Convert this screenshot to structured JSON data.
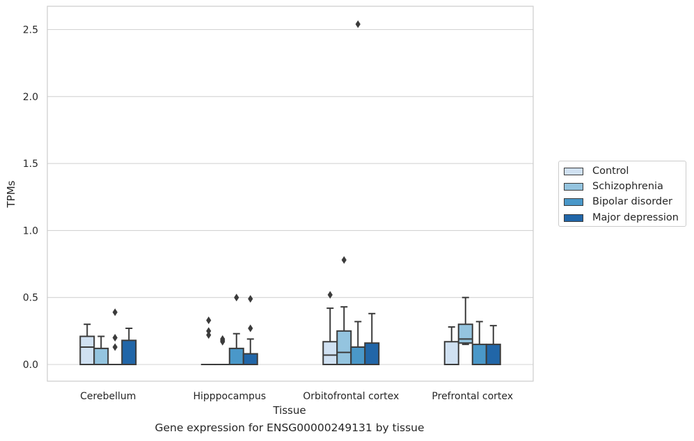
{
  "caption": "Gene expression for ENSG00000249131 by tissue",
  "legend": {
    "items": [
      {
        "label": "Control",
        "color": "#d0e1f2"
      },
      {
        "label": "Schizophrenia",
        "color": "#94c4df"
      },
      {
        "label": "Bipolar disorder",
        "color": "#4a98c9"
      },
      {
        "label": "Major depression",
        "color": "#2166a8"
      }
    ]
  },
  "chart_data": {
    "type": "box",
    "xlabel": "Tissue",
    "ylabel": "TPMs",
    "categories": [
      "Cerebellum",
      "Hipppocampus",
      "Orbitofrontal cortex",
      "Prefrontal cortex"
    ],
    "ylim": [
      -0.125,
      2.67
    ],
    "yticks": [
      0.0,
      0.5,
      1.0,
      1.5,
      2.0,
      2.5
    ],
    "ytick_labels": [
      "0.0",
      "0.5",
      "1.0",
      "1.5",
      "2.0",
      "2.5"
    ],
    "grid": true,
    "legend_position": "outside right",
    "series": [
      {
        "name": "Control",
        "color": "#d0e1f2",
        "boxes": [
          {
            "min": 0.0,
            "q1": 0.0,
            "median": 0.13,
            "q3": 0.21,
            "max": 0.3,
            "outliers": []
          },
          {
            "min": 0.0,
            "q1": 0.0,
            "median": 0.0,
            "q3": 0.0,
            "max": 0.0,
            "outliers": [
              0.22,
              0.25,
              0.33
            ]
          },
          {
            "min": 0.0,
            "q1": 0.0,
            "median": 0.07,
            "q3": 0.17,
            "max": 0.42,
            "outliers": [
              0.52
            ]
          },
          {
            "min": 0.0,
            "q1": 0.0,
            "median": 0.0,
            "q3": 0.17,
            "max": 0.28,
            "outliers": []
          }
        ]
      },
      {
        "name": "Schizophrenia",
        "color": "#94c4df",
        "boxes": [
          {
            "min": 0.0,
            "q1": 0.0,
            "median": 0.0,
            "q3": 0.12,
            "max": 0.21,
            "outliers": []
          },
          {
            "min": 0.0,
            "q1": 0.0,
            "median": 0.0,
            "q3": 0.0,
            "max": 0.0,
            "outliers": [
              0.17,
              0.18,
              0.19
            ]
          },
          {
            "min": 0.0,
            "q1": 0.0,
            "median": 0.09,
            "q3": 0.25,
            "max": 0.43,
            "outliers": [
              0.78
            ]
          },
          {
            "min": 0.15,
            "q1": 0.16,
            "median": 0.19,
            "q3": 0.3,
            "max": 0.5,
            "outliers": []
          }
        ]
      },
      {
        "name": "Bipolar disorder",
        "color": "#4a98c9",
        "boxes": [
          {
            "min": 0.0,
            "q1": 0.0,
            "median": 0.0,
            "q3": 0.0,
            "max": 0.0,
            "outliers": [
              0.13,
              0.2,
              0.39
            ]
          },
          {
            "min": 0.0,
            "q1": 0.0,
            "median": 0.0,
            "q3": 0.12,
            "max": 0.23,
            "outliers": [
              0.5
            ]
          },
          {
            "min": 0.0,
            "q1": 0.0,
            "median": 0.0,
            "q3": 0.13,
            "max": 0.32,
            "outliers": [
              2.54
            ]
          },
          {
            "min": 0.0,
            "q1": 0.0,
            "median": 0.0,
            "q3": 0.15,
            "max": 0.32,
            "outliers": []
          }
        ]
      },
      {
        "name": "Major depression",
        "color": "#2166a8",
        "boxes": [
          {
            "min": 0.0,
            "q1": 0.0,
            "median": 0.0,
            "q3": 0.18,
            "max": 0.27,
            "outliers": []
          },
          {
            "min": 0.0,
            "q1": 0.0,
            "median": 0.0,
            "q3": 0.08,
            "max": 0.19,
            "outliers": [
              0.27,
              0.49
            ]
          },
          {
            "min": 0.0,
            "q1": 0.0,
            "median": 0.0,
            "q3": 0.16,
            "max": 0.38,
            "outliers": []
          },
          {
            "min": 0.0,
            "q1": 0.0,
            "median": 0.0,
            "q3": 0.15,
            "max": 0.29,
            "outliers": []
          }
        ]
      }
    ]
  }
}
